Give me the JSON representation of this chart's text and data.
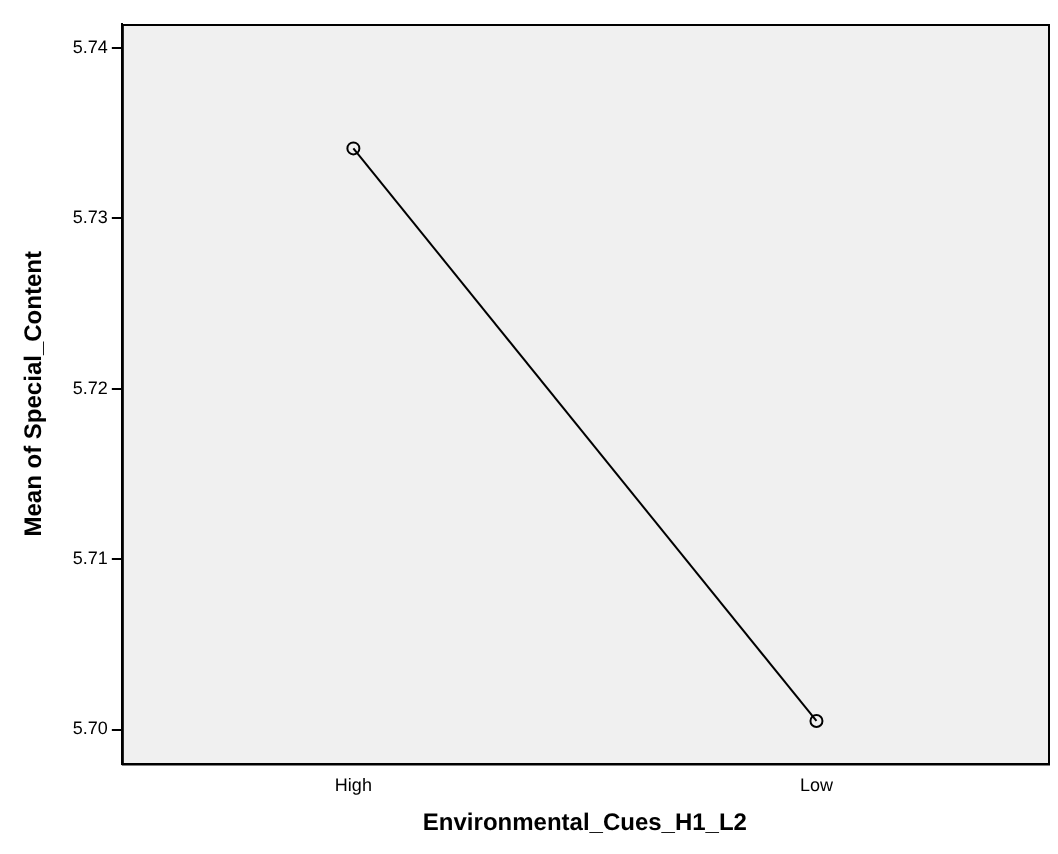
{
  "chart_data": {
    "type": "line",
    "xlabel": "Environmental_Cues_H1_L2",
    "ylabel": "Mean of Special_Content",
    "categories": [
      "High",
      "Low"
    ],
    "series": [
      {
        "color": "#000000",
        "values": [
          5.7341,
          5.7005
        ]
      }
    ],
    "ylim": [
      5.698,
      5.7414
    ],
    "yticks": [
      {
        "value": 5.7,
        "label": "5.70"
      },
      {
        "value": 5.71,
        "label": "5.71"
      },
      {
        "value": 5.72,
        "label": "5.72"
      },
      {
        "value": 5.73,
        "label": "5.73"
      },
      {
        "value": 5.74,
        "label": "5.74"
      }
    ],
    "grid": false,
    "legend": false,
    "marker": "circle",
    "line_style": "solid"
  }
}
